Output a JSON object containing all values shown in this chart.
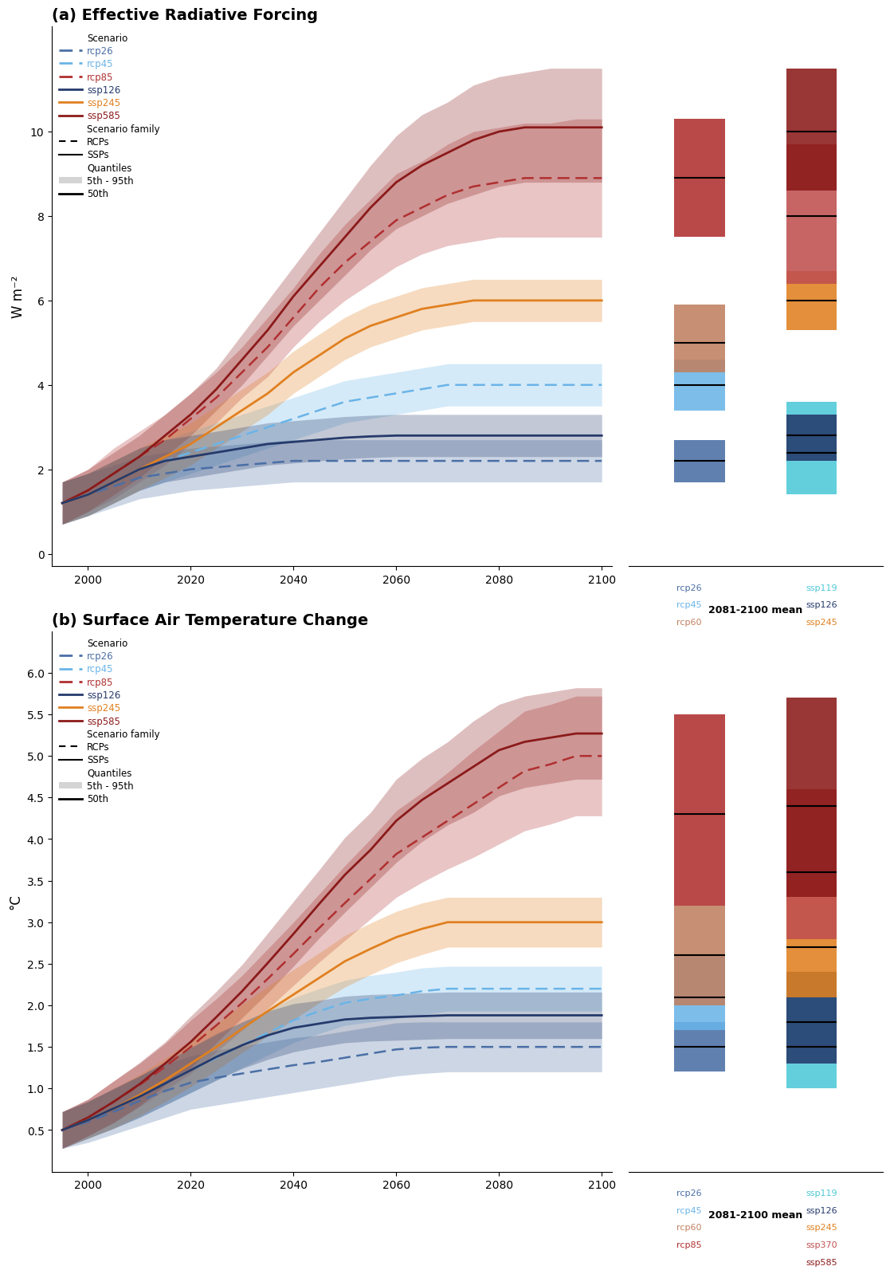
{
  "title_a": "(a) Effective Radiative Forcing",
  "title_b": "(b) Surface Air Temperature Change",
  "ylabel_a": "W m⁻²",
  "ylabel_b": "°C",
  "years": [
    1995,
    2000,
    2005,
    2010,
    2015,
    2020,
    2025,
    2030,
    2035,
    2040,
    2045,
    2050,
    2055,
    2060,
    2065,
    2070,
    2075,
    2080,
    2085,
    2090,
    2095,
    2100
  ],
  "erf": {
    "rcp26": {
      "p50": [
        1.2,
        1.4,
        1.6,
        1.8,
        1.9,
        2.0,
        2.05,
        2.1,
        2.15,
        2.2,
        2.2,
        2.2,
        2.2,
        2.2,
        2.2,
        2.2,
        2.2,
        2.2,
        2.2,
        2.2,
        2.2,
        2.2
      ],
      "p05": [
        0.7,
        0.9,
        1.1,
        1.3,
        1.4,
        1.5,
        1.55,
        1.6,
        1.65,
        1.7,
        1.7,
        1.7,
        1.7,
        1.7,
        1.7,
        1.7,
        1.7,
        1.7,
        1.7,
        1.7,
        1.7,
        1.7
      ],
      "p95": [
        1.7,
        1.9,
        2.1,
        2.3,
        2.4,
        2.5,
        2.55,
        2.6,
        2.65,
        2.7,
        2.7,
        2.7,
        2.7,
        2.7,
        2.7,
        2.7,
        2.7,
        2.7,
        2.7,
        2.7,
        2.7,
        2.7
      ],
      "color": "#4a6fa5",
      "style": "dashed"
    },
    "rcp45": {
      "p50": [
        1.2,
        1.4,
        1.7,
        2.0,
        2.2,
        2.4,
        2.6,
        2.8,
        3.0,
        3.2,
        3.4,
        3.6,
        3.7,
        3.8,
        3.9,
        4.0,
        4.0,
        4.0,
        4.0,
        4.0,
        4.0,
        4.0
      ],
      "p05": [
        0.7,
        0.9,
        1.2,
        1.5,
        1.7,
        1.9,
        2.1,
        2.3,
        2.5,
        2.7,
        2.9,
        3.1,
        3.2,
        3.3,
        3.4,
        3.5,
        3.5,
        3.5,
        3.5,
        3.5,
        3.5,
        3.5
      ],
      "p95": [
        1.7,
        1.9,
        2.2,
        2.5,
        2.7,
        2.9,
        3.1,
        3.3,
        3.5,
        3.7,
        3.9,
        4.1,
        4.2,
        4.3,
        4.4,
        4.5,
        4.5,
        4.5,
        4.5,
        4.5,
        4.5,
        4.5
      ],
      "color": "#6ab4e8",
      "style": "dashed"
    },
    "rcp85": {
      "p50": [
        1.2,
        1.5,
        1.9,
        2.3,
        2.7,
        3.2,
        3.7,
        4.3,
        4.9,
        5.6,
        6.3,
        6.9,
        7.4,
        7.9,
        8.2,
        8.5,
        8.7,
        8.8,
        8.9,
        8.9,
        8.9,
        8.9
      ],
      "p05": [
        0.7,
        1.0,
        1.3,
        1.7,
        2.1,
        2.6,
        3.1,
        3.7,
        4.2,
        4.9,
        5.5,
        6.0,
        6.4,
        6.8,
        7.1,
        7.3,
        7.4,
        7.5,
        7.5,
        7.5,
        7.5,
        7.5
      ],
      "p95": [
        1.7,
        2.0,
        2.5,
        2.9,
        3.3,
        3.8,
        4.3,
        4.9,
        5.6,
        6.3,
        7.1,
        7.8,
        8.4,
        9.0,
        9.3,
        9.7,
        10.0,
        10.1,
        10.2,
        10.2,
        10.3,
        10.3
      ],
      "color": "#b03030",
      "style": "dashed"
    },
    "ssp126": {
      "p50": [
        1.2,
        1.4,
        1.7,
        2.0,
        2.2,
        2.3,
        2.4,
        2.5,
        2.6,
        2.65,
        2.7,
        2.75,
        2.78,
        2.8,
        2.8,
        2.8,
        2.8,
        2.8,
        2.8,
        2.8,
        2.8,
        2.8
      ],
      "p05": [
        0.7,
        0.9,
        1.2,
        1.5,
        1.7,
        1.8,
        1.9,
        2.0,
        2.1,
        2.15,
        2.2,
        2.25,
        2.28,
        2.3,
        2.3,
        2.3,
        2.3,
        2.3,
        2.3,
        2.3,
        2.3,
        2.3
      ],
      "p95": [
        1.7,
        1.9,
        2.2,
        2.5,
        2.7,
        2.8,
        2.9,
        3.0,
        3.1,
        3.15,
        3.2,
        3.25,
        3.28,
        3.3,
        3.3,
        3.3,
        3.3,
        3.3,
        3.3,
        3.3,
        3.3,
        3.3
      ],
      "color": "#253a6b",
      "style": "solid"
    },
    "ssp245": {
      "p50": [
        1.2,
        1.4,
        1.7,
        2.0,
        2.3,
        2.6,
        3.0,
        3.4,
        3.8,
        4.3,
        4.7,
        5.1,
        5.4,
        5.6,
        5.8,
        5.9,
        6.0,
        6.0,
        6.0,
        6.0,
        6.0,
        6.0
      ],
      "p05": [
        0.7,
        0.9,
        1.2,
        1.5,
        1.8,
        2.1,
        2.5,
        2.9,
        3.3,
        3.8,
        4.2,
        4.6,
        4.9,
        5.1,
        5.3,
        5.4,
        5.5,
        5.5,
        5.5,
        5.5,
        5.5,
        5.5
      ],
      "p95": [
        1.7,
        1.9,
        2.2,
        2.5,
        2.8,
        3.1,
        3.5,
        3.9,
        4.3,
        4.8,
        5.2,
        5.6,
        5.9,
        6.1,
        6.3,
        6.4,
        6.5,
        6.5,
        6.5,
        6.5,
        6.5,
        6.5
      ],
      "color": "#e08020",
      "style": "solid"
    },
    "ssp585": {
      "p50": [
        1.2,
        1.5,
        1.9,
        2.3,
        2.8,
        3.3,
        3.9,
        4.6,
        5.3,
        6.1,
        6.8,
        7.5,
        8.2,
        8.8,
        9.2,
        9.5,
        9.8,
        10.0,
        10.1,
        10.1,
        10.1,
        10.1
      ],
      "p05": [
        0.7,
        1.0,
        1.4,
        1.8,
        2.3,
        2.8,
        3.4,
        4.0,
        4.7,
        5.4,
        6.0,
        6.6,
        7.2,
        7.7,
        8.0,
        8.3,
        8.5,
        8.7,
        8.8,
        8.8,
        8.8,
        8.8
      ],
      "p95": [
        1.7,
        2.0,
        2.4,
        2.8,
        3.3,
        3.8,
        4.4,
        5.2,
        6.0,
        6.8,
        7.6,
        8.4,
        9.2,
        9.9,
        10.4,
        10.7,
        11.1,
        11.3,
        11.4,
        11.5,
        11.5,
        11.5
      ],
      "color": "#8b1a1a",
      "style": "solid"
    }
  },
  "temp": {
    "rcp26": {
      "p50": [
        0.5,
        0.6,
        0.72,
        0.85,
        0.97,
        1.07,
        1.13,
        1.18,
        1.23,
        1.28,
        1.32,
        1.37,
        1.42,
        1.47,
        1.49,
        1.5,
        1.5,
        1.5,
        1.5,
        1.5,
        1.5,
        1.5
      ],
      "p05": [
        0.28,
        0.35,
        0.45,
        0.55,
        0.65,
        0.75,
        0.8,
        0.85,
        0.9,
        0.95,
        1.0,
        1.05,
        1.1,
        1.15,
        1.18,
        1.2,
        1.2,
        1.2,
        1.2,
        1.2,
        1.2,
        1.2
      ],
      "p95": [
        0.72,
        0.85,
        0.99,
        1.15,
        1.29,
        1.39,
        1.46,
        1.51,
        1.56,
        1.61,
        1.64,
        1.69,
        1.74,
        1.79,
        1.8,
        1.8,
        1.8,
        1.8,
        1.8,
        1.8,
        1.8,
        1.8
      ],
      "color": "#4a6fa5",
      "style": "dashed"
    },
    "rcp45": {
      "p50": [
        0.5,
        0.62,
        0.76,
        0.9,
        1.06,
        1.22,
        1.37,
        1.52,
        1.67,
        1.82,
        1.93,
        2.03,
        2.08,
        2.12,
        2.17,
        2.2,
        2.2,
        2.2,
        2.2,
        2.2,
        2.2,
        2.2
      ],
      "p05": [
        0.28,
        0.4,
        0.52,
        0.65,
        0.8,
        0.95,
        1.1,
        1.25,
        1.4,
        1.55,
        1.66,
        1.76,
        1.8,
        1.84,
        1.89,
        1.93,
        1.93,
        1.93,
        1.93,
        1.93,
        1.93,
        1.93
      ],
      "p95": [
        0.72,
        0.84,
        1.0,
        1.15,
        1.32,
        1.49,
        1.64,
        1.79,
        1.94,
        2.09,
        2.2,
        2.3,
        2.36,
        2.4,
        2.45,
        2.47,
        2.47,
        2.47,
        2.47,
        2.47,
        2.47,
        2.47
      ],
      "color": "#6ab4e8",
      "style": "dashed"
    },
    "rcp85": {
      "p50": [
        0.5,
        0.65,
        0.84,
        1.04,
        1.26,
        1.5,
        1.76,
        2.03,
        2.32,
        2.62,
        2.93,
        3.23,
        3.52,
        3.82,
        4.02,
        4.22,
        4.42,
        4.62,
        4.82,
        4.9,
        5.0,
        5.0
      ],
      "p05": [
        0.28,
        0.43,
        0.59,
        0.78,
        0.98,
        1.18,
        1.44,
        1.7,
        1.96,
        2.24,
        2.52,
        2.78,
        3.04,
        3.3,
        3.48,
        3.64,
        3.78,
        3.94,
        4.1,
        4.18,
        4.28,
        4.28
      ],
      "p95": [
        0.72,
        0.87,
        1.09,
        1.3,
        1.54,
        1.82,
        2.08,
        2.36,
        2.68,
        3.0,
        3.34,
        3.68,
        4.0,
        4.34,
        4.56,
        4.8,
        5.06,
        5.3,
        5.54,
        5.62,
        5.72,
        5.72
      ],
      "color": "#b03030",
      "style": "dashed"
    },
    "ssp126": {
      "p50": [
        0.5,
        0.62,
        0.76,
        0.9,
        1.06,
        1.22,
        1.38,
        1.52,
        1.64,
        1.73,
        1.78,
        1.83,
        1.85,
        1.86,
        1.87,
        1.88,
        1.88,
        1.88,
        1.88,
        1.88,
        1.88,
        1.88
      ],
      "p05": [
        0.28,
        0.4,
        0.52,
        0.65,
        0.8,
        0.95,
        1.1,
        1.24,
        1.35,
        1.44,
        1.5,
        1.55,
        1.57,
        1.58,
        1.59,
        1.6,
        1.6,
        1.6,
        1.6,
        1.6,
        1.6,
        1.6
      ],
      "p95": [
        0.72,
        0.84,
        1.0,
        1.15,
        1.32,
        1.49,
        1.66,
        1.8,
        1.93,
        2.02,
        2.06,
        2.11,
        2.13,
        2.14,
        2.15,
        2.16,
        2.16,
        2.16,
        2.16,
        2.16,
        2.16,
        2.16
      ],
      "color": "#253a6b",
      "style": "solid"
    },
    "ssp245": {
      "p50": [
        0.5,
        0.62,
        0.76,
        0.92,
        1.1,
        1.3,
        1.5,
        1.72,
        1.93,
        2.13,
        2.33,
        2.53,
        2.68,
        2.82,
        2.92,
        3.0,
        3.0,
        3.0,
        3.0,
        3.0,
        3.0,
        3.0
      ],
      "p05": [
        0.28,
        0.4,
        0.52,
        0.67,
        0.84,
        1.02,
        1.22,
        1.43,
        1.63,
        1.83,
        2.03,
        2.22,
        2.37,
        2.51,
        2.61,
        2.7,
        2.7,
        2.7,
        2.7,
        2.7,
        2.7,
        2.7
      ],
      "p95": [
        0.72,
        0.84,
        1.0,
        1.17,
        1.36,
        1.58,
        1.78,
        2.01,
        2.23,
        2.43,
        2.63,
        2.84,
        2.99,
        3.13,
        3.23,
        3.3,
        3.3,
        3.3,
        3.3,
        3.3,
        3.3,
        3.3
      ],
      "color": "#e08020",
      "style": "solid"
    },
    "ssp585": {
      "p50": [
        0.5,
        0.65,
        0.84,
        1.05,
        1.3,
        1.56,
        1.86,
        2.17,
        2.51,
        2.86,
        3.22,
        3.57,
        3.87,
        4.22,
        4.47,
        4.67,
        4.87,
        5.07,
        5.17,
        5.22,
        5.27,
        5.27
      ],
      "p05": [
        0.28,
        0.43,
        0.59,
        0.79,
        1.04,
        1.25,
        1.55,
        1.85,
        2.15,
        2.47,
        2.81,
        3.12,
        3.42,
        3.72,
        3.97,
        4.17,
        4.32,
        4.52,
        4.62,
        4.67,
        4.72,
        4.72
      ],
      "p95": [
        0.72,
        0.87,
        1.09,
        1.31,
        1.56,
        1.87,
        2.17,
        2.49,
        2.87,
        3.25,
        3.63,
        4.02,
        4.32,
        4.72,
        4.97,
        5.17,
        5.42,
        5.62,
        5.72,
        5.77,
        5.82,
        5.82
      ],
      "color": "#8b1a1a",
      "style": "solid"
    }
  },
  "erf_bars": {
    "rcp26": {
      "p05": 1.7,
      "p50": 2.2,
      "p95": 2.7,
      "color": "#4a6fa5"
    },
    "rcp45": {
      "p05": 3.4,
      "p50": 4.0,
      "p95": 4.6,
      "color": "#6ab4e8"
    },
    "rcp60": {
      "p05": 4.3,
      "p50": 5.0,
      "p95": 5.9,
      "color": "#c08060"
    },
    "rcp85": {
      "p05": 7.5,
      "p50": 8.9,
      "p95": 10.3,
      "color": "#b03030"
    },
    "ssp119": {
      "p05": 1.4,
      "p50": 2.4,
      "p95": 3.6,
      "color": "#4ec9d8"
    },
    "ssp126": {
      "p05": 2.2,
      "p50": 2.8,
      "p95": 3.3,
      "color": "#253a6b"
    },
    "ssp245": {
      "p05": 5.3,
      "p50": 6.0,
      "p95": 6.7,
      "color": "#e08020"
    },
    "ssp370": {
      "p05": 6.4,
      "p50": 8.0,
      "p95": 9.7,
      "color": "#c05050"
    },
    "ssp585": {
      "p05": 8.6,
      "p50": 10.0,
      "p95": 11.5,
      "color": "#8b1a1a"
    }
  },
  "temp_bars": {
    "rcp26": {
      "p05": 1.2,
      "p50": 1.5,
      "p95": 1.8,
      "color": "#4a6fa5"
    },
    "rcp45": {
      "p05": 1.7,
      "p50": 2.1,
      "p95": 2.6,
      "color": "#6ab4e8"
    },
    "rcp60": {
      "p05": 2.0,
      "p50": 2.6,
      "p95": 3.2,
      "color": "#c08060"
    },
    "rcp85": {
      "p05": 3.2,
      "p50": 4.3,
      "p95": 5.5,
      "color": "#b03030"
    },
    "ssp119": {
      "p05": 1.0,
      "p50": 1.5,
      "p95": 2.4,
      "color": "#4ec9d8"
    },
    "ssp126": {
      "p05": 1.3,
      "p50": 1.8,
      "p95": 2.4,
      "color": "#253a6b"
    },
    "ssp245": {
      "p05": 2.1,
      "p50": 2.7,
      "p95": 3.5,
      "color": "#e08020"
    },
    "ssp370": {
      "p05": 2.8,
      "p50": 3.6,
      "p95": 4.6,
      "color": "#c05050"
    },
    "ssp585": {
      "p05": 3.3,
      "p50": 4.4,
      "p95": 5.7,
      "color": "#8b1a1a"
    }
  },
  "ylim_erf": [
    -0.3,
    12.5
  ],
  "ylim_temp": [
    0.0,
    6.5
  ],
  "yticks_erf": [
    0,
    2,
    4,
    6,
    8,
    10
  ],
  "yticks_temp": [
    0.5,
    1.0,
    1.5,
    2.0,
    2.5,
    3.0,
    3.5,
    4.0,
    4.5,
    5.0,
    5.5,
    6.0
  ],
  "bar_labels_left": [
    "rcp26",
    "rcp45",
    "rcp60",
    "rcp85"
  ],
  "bar_labels_right": [
    "ssp119",
    "ssp126",
    "ssp245",
    "ssp370",
    "ssp585"
  ],
  "bar_label_colors_left": [
    "#4a6fa5",
    "#6ab4e8",
    "#c08060",
    "#b03030"
  ],
  "bar_label_colors_right": [
    "#4ec9d8",
    "#253a6b",
    "#e08020",
    "#c05050",
    "#8b1a1a"
  ]
}
